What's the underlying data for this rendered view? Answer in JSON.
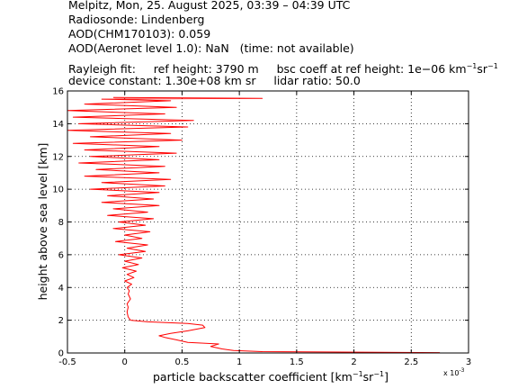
{
  "header": {
    "line1": "Melpitz, Mon, 25. August 2025, 03:39 – 04:39 UTC",
    "line2": "Radiosonde: Lindenberg",
    "line3": "AOD(CHM170103): 0.059",
    "line4": "AOD(Aeronet level 1.0): NaN   (time: not available)",
    "rayleigh_label": "Rayleigh fit:",
    "ref_height": "ref height: 3790 m",
    "bsc_coeff_prefix": "bsc coeff at ref height: 1e−06 km",
    "bsc_unit_mid": "sr",
    "device_constant": "device constant: 1.30e+08 km sr",
    "lidar_ratio": "lidar ratio: 50.0"
  },
  "axes": {
    "xlabel_prefix": "particle backscatter coefficient [km",
    "xlabel_mid": "sr",
    "xlabel_suffix": "]",
    "ylabel": "height above sea level [km]",
    "x_multiplier": "x 10",
    "x_multiplier_exp": "-3"
  },
  "colors": {
    "profile": "#ff0000",
    "grid": "#000000"
  },
  "chart_data": {
    "type": "line",
    "xlim": [
      -0.5,
      3.0
    ],
    "ylim": [
      0,
      16
    ],
    "x_ticks": [
      -0.5,
      0,
      0.5,
      1,
      1.5,
      2,
      2.5,
      3
    ],
    "x_tick_labels": [
      "-0.5",
      "0",
      "0.5",
      "1",
      "1.5",
      "2",
      "2.5",
      "3"
    ],
    "y_ticks": [
      0,
      2,
      4,
      6,
      8,
      10,
      12,
      14,
      16
    ],
    "y_tick_labels": [
      "0",
      "2",
      "4",
      "6",
      "8",
      "10",
      "12",
      "14",
      "16"
    ],
    "x_scale_factor": "1e-3",
    "grid": true,
    "series": [
      {
        "color": "#ff0000",
        "points": [
          [
            2.75,
            0.02
          ],
          [
            1.2,
            0.08
          ],
          [
            0.95,
            0.15
          ],
          [
            0.85,
            0.25
          ],
          [
            0.75,
            0.4
          ],
          [
            0.82,
            0.55
          ],
          [
            0.55,
            0.65
          ],
          [
            0.45,
            0.8
          ],
          [
            0.35,
            0.95
          ],
          [
            0.3,
            1.05
          ],
          [
            0.4,
            1.2
          ],
          [
            0.55,
            1.35
          ],
          [
            0.7,
            1.55
          ],
          [
            0.68,
            1.7
          ],
          [
            0.55,
            1.8
          ],
          [
            0.2,
            1.9
          ],
          [
            0.05,
            2.0
          ],
          [
            0.03,
            2.2
          ],
          [
            0.02,
            2.5
          ],
          [
            0.03,
            2.8
          ],
          [
            0.02,
            3.0
          ],
          [
            0.05,
            3.3
          ],
          [
            0.03,
            3.6
          ],
          [
            0.04,
            3.8
          ],
          [
            0.02,
            4.0
          ],
          [
            0.06,
            4.2
          ],
          [
            0.0,
            4.4
          ],
          [
            0.08,
            4.6
          ],
          [
            0.02,
            4.8
          ],
          [
            0.1,
            5.0
          ],
          [
            -0.02,
            5.2
          ],
          [
            0.12,
            5.4
          ],
          [
            0.0,
            5.6
          ],
          [
            0.15,
            5.8
          ],
          [
            -0.05,
            6.0
          ],
          [
            0.18,
            6.2
          ],
          [
            0.02,
            6.4
          ],
          [
            0.2,
            6.6
          ],
          [
            -0.08,
            6.8
          ],
          [
            0.15,
            7.0
          ],
          [
            0.0,
            7.2
          ],
          [
            0.22,
            7.4
          ],
          [
            -0.1,
            7.6
          ],
          [
            0.18,
            7.8
          ],
          [
            -0.05,
            8.0
          ],
          [
            0.25,
            8.2
          ],
          [
            -0.15,
            8.4
          ],
          [
            0.2,
            8.6
          ],
          [
            -0.1,
            8.8
          ],
          [
            0.3,
            9.0
          ],
          [
            -0.2,
            9.2
          ],
          [
            0.25,
            9.4
          ],
          [
            -0.15,
            9.6
          ],
          [
            0.3,
            9.8
          ],
          [
            -0.3,
            10.0
          ],
          [
            0.35,
            10.2
          ],
          [
            -0.2,
            10.4
          ],
          [
            0.4,
            10.6
          ],
          [
            -0.35,
            10.8
          ],
          [
            0.3,
            11.0
          ],
          [
            -0.25,
            11.2
          ],
          [
            0.35,
            11.4
          ],
          [
            -0.4,
            11.6
          ],
          [
            0.3,
            11.8
          ],
          [
            -0.3,
            12.0
          ],
          [
            0.45,
            12.2
          ],
          [
            -0.35,
            12.4
          ],
          [
            0.3,
            12.6
          ],
          [
            -0.45,
            12.8
          ],
          [
            0.5,
            13.0
          ],
          [
            -0.3,
            13.2
          ],
          [
            0.4,
            13.4
          ],
          [
            -0.5,
            13.6
          ],
          [
            0.55,
            13.8
          ],
          [
            -0.4,
            14.0
          ],
          [
            0.6,
            14.2
          ],
          [
            -0.45,
            14.4
          ],
          [
            0.35,
            14.6
          ],
          [
            -0.5,
            14.8
          ],
          [
            0.45,
            15.0
          ],
          [
            -0.35,
            15.2
          ],
          [
            0.4,
            15.4
          ],
          [
            -0.2,
            15.5
          ],
          [
            1.2,
            15.55
          ],
          [
            -0.1,
            15.6
          ]
        ]
      }
    ]
  }
}
